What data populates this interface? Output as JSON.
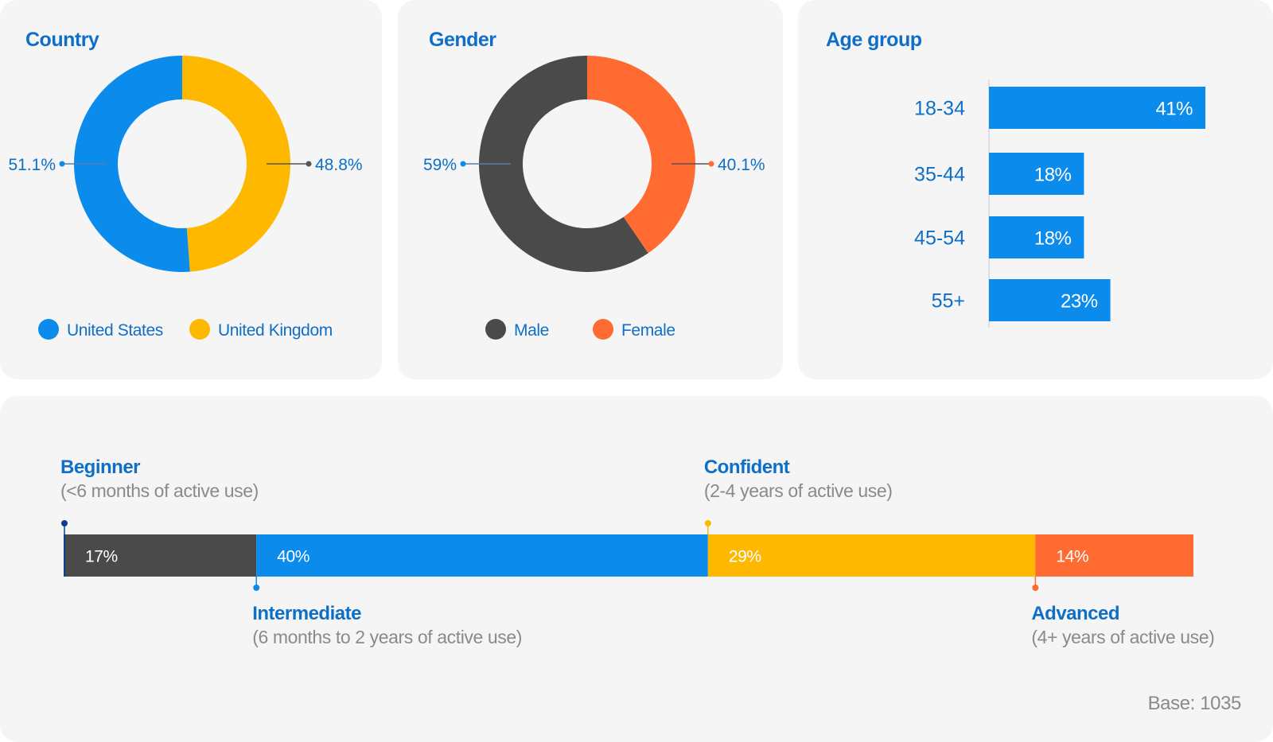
{
  "colors": {
    "blue": "#0b8beb",
    "yellow": "#ffb800",
    "dark": "#4a4a4a",
    "orange": "#ff6b30",
    "navy": "#0f6fc6",
    "grey_text": "#8a8a8a"
  },
  "country": {
    "title": "Country",
    "chart_data": {
      "type": "pie",
      "slices": [
        {
          "name": "United States",
          "label": "51.1%",
          "value": 51.1,
          "color": "#0b8beb"
        },
        {
          "name": "United Kingdom",
          "label": "48.8%",
          "value": 48.8,
          "color": "#ffb800"
        }
      ],
      "legend_position": "bottom"
    }
  },
  "gender": {
    "title": "Gender",
    "chart_data": {
      "type": "pie",
      "slices": [
        {
          "name": "Male",
          "label": "59%",
          "value": 59,
          "color": "#4a4a4a"
        },
        {
          "name": "Female",
          "label": "40.1%",
          "value": 40.1,
          "color": "#ff6b30"
        }
      ],
      "legend_position": "bottom"
    }
  },
  "age": {
    "title": "Age group",
    "chart_data": {
      "type": "bar",
      "orientation": "horizontal",
      "categories": [
        "18-34",
        "35-44",
        "45-54",
        "55+"
      ],
      "values": [
        41,
        18,
        18,
        23
      ],
      "labels": [
        "41%",
        "18%",
        "18%",
        "23%"
      ],
      "color": "#0b8beb"
    }
  },
  "experience": {
    "chart_data": {
      "type": "bar",
      "orientation": "stacked-horizontal",
      "segments": [
        {
          "name": "Beginner",
          "description": "(<6 months of active use)",
          "value": 17,
          "label": "17%",
          "color": "#4a4a4a",
          "marker_color": "#0b3e8c",
          "label_side": "top"
        },
        {
          "name": "Intermediate",
          "description": "(6 months to 2 years of active use)",
          "value": 40,
          "label": "40%",
          "color": "#0b8beb",
          "marker_color": "#0b8beb",
          "label_side": "bottom"
        },
        {
          "name": "Confident",
          "description": "(2-4 years of active use)",
          "value": 29,
          "label": "29%",
          "color": "#ffb800",
          "marker_color": "#ffb800",
          "label_side": "top"
        },
        {
          "name": "Advanced",
          "description": "(4+ years of active use)",
          "value": 14,
          "label": "14%",
          "color": "#ff6b30",
          "marker_color": "#ff6b30",
          "label_side": "bottom"
        }
      ]
    }
  },
  "base_note": "Base: 1035"
}
